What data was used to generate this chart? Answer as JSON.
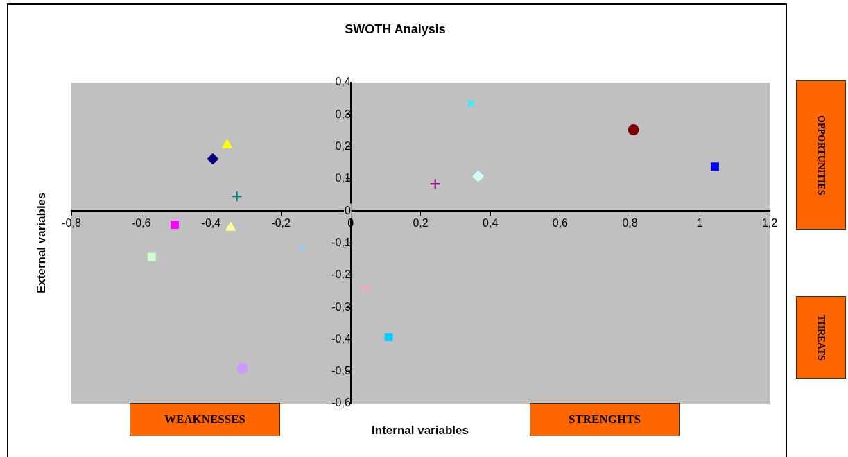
{
  "chart_data": {
    "type": "scatter",
    "title": "SWOTH Analysis",
    "xlabel": "Internal variables",
    "ylabel": "External variables",
    "annotations": [
      "WEAKNESSES",
      "STRENGHTS",
      "OPPORTUNITIES",
      "THREATS"
    ],
    "xlim": [
      -0.8,
      1.2
    ],
    "ylim": [
      -0.6,
      0.4
    ],
    "xticks": [
      {
        "value": -0.8,
        "label": "-0,8"
      },
      {
        "value": -0.6,
        "label": "-0,6"
      },
      {
        "value": -0.4,
        "label": "-0,4"
      },
      {
        "value": -0.2,
        "label": "-0,2"
      },
      0,
      {
        "value": 0.2,
        "label": "0,2"
      },
      {
        "value": 0.4,
        "label": "0,4"
      },
      {
        "value": 0.6,
        "label": "0,6"
      },
      {
        "value": 0.8,
        "label": "0,8"
      },
      1,
      {
        "value": 1.2,
        "label": "1,2"
      }
    ],
    "yticks": [
      {
        "value": -0.6,
        "label": "-0,6"
      },
      {
        "value": -0.5,
        "label": "-0,5"
      },
      {
        "value": -0.4,
        "label": "-0,4"
      },
      {
        "value": -0.3,
        "label": "-0,3"
      },
      {
        "value": -0.2,
        "label": "-0,2"
      },
      {
        "value": -0.1,
        "label": "-0,1"
      },
      0,
      {
        "value": 0.1,
        "label": "0,1"
      },
      {
        "value": 0.2,
        "label": "0,2"
      },
      {
        "value": 0.3,
        "label": "0,3"
      },
      {
        "value": 0.4,
        "label": "0,4"
      }
    ],
    "grid": false,
    "legend": false,
    "series": [
      {
        "color": "#000080",
        "marker": "diamond",
        "x": [
          -0.395
        ],
        "values": [
          0.162
        ]
      },
      {
        "color": "#ffff00",
        "marker": "triangle",
        "x": [
          -0.354
        ],
        "values": [
          0.205
        ]
      },
      {
        "color": "#008080",
        "marker": "plus",
        "x": [
          -0.326
        ],
        "values": [
          0.045
        ]
      },
      {
        "color": "#ff00ff",
        "marker": "square",
        "x": [
          -0.504
        ],
        "values": [
          -0.043
        ]
      },
      {
        "color": "#ffff99",
        "marker": "triangle",
        "x": [
          -0.344
        ],
        "values": [
          -0.052
        ]
      },
      {
        "color": "#ccffcc",
        "marker": "square",
        "x": [
          -0.57
        ],
        "values": [
          -0.143
        ]
      },
      {
        "color": "#99ccff",
        "marker": "x",
        "x": [
          -0.139
        ],
        "values": [
          -0.117
        ]
      },
      {
        "color": "#cc99ff",
        "marker": "circle",
        "x": [
          -0.31
        ],
        "values": [
          -0.49
        ]
      },
      {
        "color": "#ff99cc",
        "marker": "cross",
        "x": [
          0.044
        ],
        "values": [
          -0.24
        ]
      },
      {
        "color": "#00ccff",
        "marker": "square",
        "x": [
          0.109
        ],
        "values": [
          -0.393
        ]
      },
      {
        "color": "#800080",
        "marker": "cross",
        "x": [
          0.242
        ],
        "values": [
          0.084
        ]
      },
      {
        "color": "#00ffff",
        "marker": "x",
        "x": [
          0.344
        ],
        "values": [
          0.335
        ]
      },
      {
        "color": "#ccffff",
        "marker": "diamond",
        "x": [
          0.365
        ],
        "values": [
          0.108
        ]
      },
      {
        "color": "#800000",
        "marker": "circle",
        "x": [
          0.81
        ],
        "values": [
          0.253
        ]
      },
      {
        "color": "#0000ff",
        "marker": "square",
        "x": [
          1.043
        ],
        "values": [
          0.138
        ]
      }
    ]
  }
}
